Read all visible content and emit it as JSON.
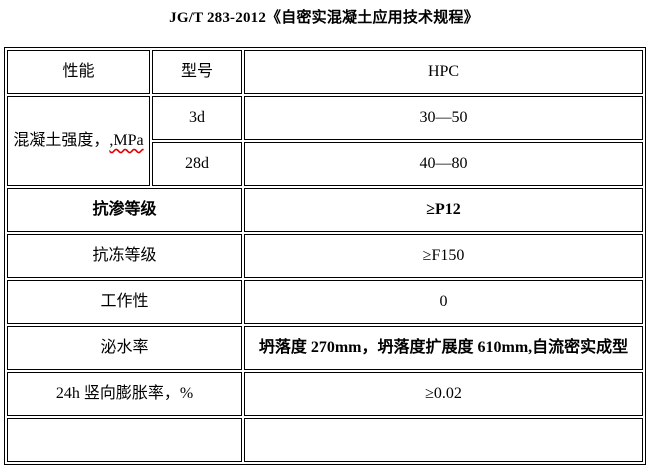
{
  "title": "JG/T 283-2012《自密实混凝土应用技术规程》",
  "table": {
    "header": {
      "performance": "性能",
      "model": "型号",
      "type": "HPC"
    },
    "strength": {
      "label": "混凝土强度，",
      "label_suffix": ",MPa",
      "rows": [
        {
          "age": "3d",
          "value": "30—50"
        },
        {
          "age": "28d",
          "value": "40—80"
        }
      ]
    },
    "rows": [
      {
        "label": "抗渗等级",
        "value": "≥P12"
      },
      {
        "label": "抗冻等级",
        "value": "≥F150"
      },
      {
        "label": "工作性",
        "value": "0"
      },
      {
        "label": "泌水率",
        "value": "坍落度 270mm，坍落度扩展度 610mm,自流密实成型"
      },
      {
        "label": "24h 竖向膨胀率，%",
        "value": "≥0.02"
      }
    ]
  }
}
